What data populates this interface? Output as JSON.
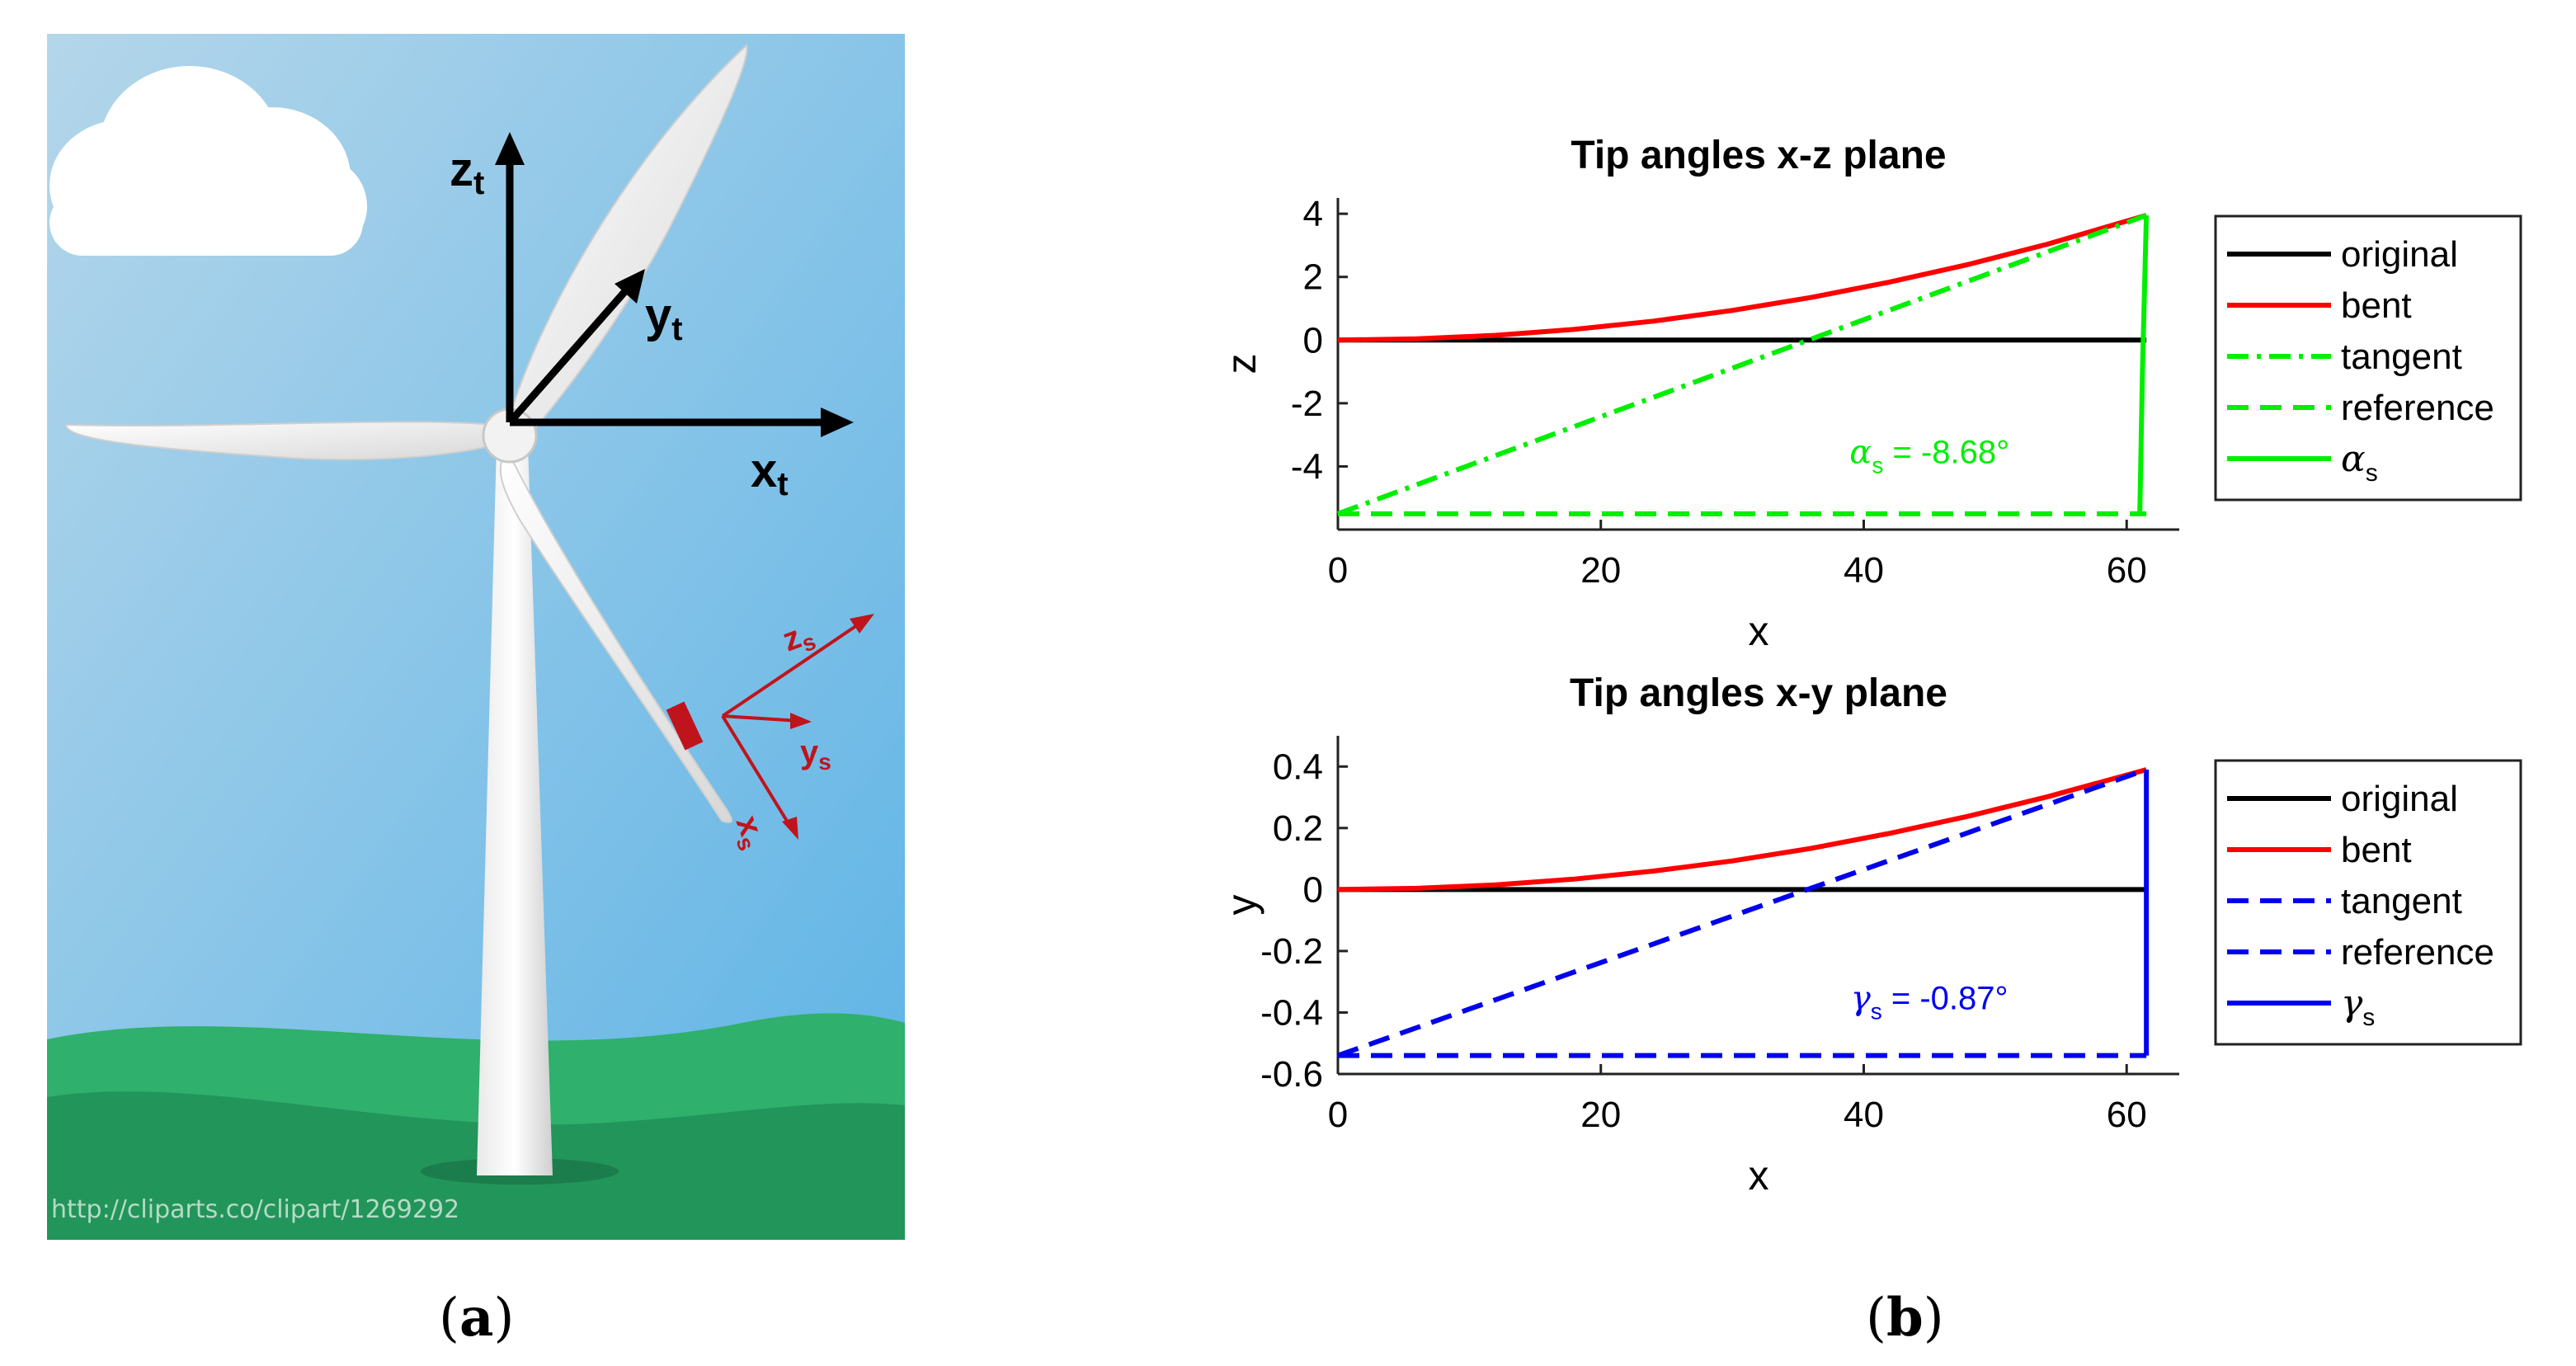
{
  "illustration": {
    "source_url": "http://cliparts.co/clipart/1269292",
    "axes_t": {
      "z": "z",
      "z_sub": "t",
      "y": "y",
      "y_sub": "t",
      "x": "x",
      "x_sub": "t"
    },
    "axes_s": {
      "z": "z",
      "z_sub": "s",
      "y": "y",
      "y_sub": "s",
      "x": "x",
      "x_sub": "s"
    },
    "colors": {
      "sky_top": "#a9d0e8",
      "sky_bottom": "#5fb4e5",
      "grass": "#2eae6a",
      "grass_dark": "#1f8f55",
      "axis_t": "#000000",
      "axis_s": "#c0141c"
    }
  },
  "captions": {
    "a": "a",
    "b": "b"
  },
  "chart_data": [
    {
      "type": "line",
      "title": "Tip angles x-z plane",
      "xlabel": "x",
      "ylabel": "z",
      "xlim": [
        0,
        64
      ],
      "ylim": [
        -6,
        4.5
      ],
      "xticks": [
        0,
        20,
        40,
        60
      ],
      "yticks": [
        4,
        2,
        0,
        -2,
        -4
      ],
      "xtick_labels": [
        "0",
        "20",
        "40",
        "60"
      ],
      "ytick_labels": [
        "4",
        "2",
        "0",
        "-2",
        "-4"
      ],
      "legend_position": "outside-right",
      "annotation": {
        "symbol": "α",
        "sub": "s",
        "text": " = -8.68°",
        "x": 45,
        "y": -3.9,
        "color": "#00ee00"
      },
      "series": [
        {
          "name": "original",
          "style": "solid",
          "color": "#000000",
          "x": [
            0,
            61.5
          ],
          "y": [
            0,
            0
          ]
        },
        {
          "name": "bent",
          "style": "solid",
          "color": "#ff0000",
          "x": [
            0,
            6,
            12,
            18,
            24,
            30,
            36,
            42,
            48,
            54,
            61.5
          ],
          "y": [
            0,
            0.04,
            0.15,
            0.34,
            0.6,
            0.94,
            1.35,
            1.84,
            2.4,
            3.04,
            3.95
          ]
        },
        {
          "name": "tangent",
          "style": "dashdot",
          "color": "#00ee00",
          "x": [
            0,
            61.5
          ],
          "y": [
            -5.5,
            3.95
          ]
        },
        {
          "name": "reference",
          "style": "dashed",
          "color": "#00ee00",
          "x": [
            0,
            61.5
          ],
          "y": [
            -5.5,
            -5.5
          ]
        },
        {
          "name": "α",
          "name_sub": "s",
          "style": "solid",
          "color": "#00ee00",
          "x": [
            61.5,
            61.2,
            61.0
          ],
          "y": [
            3.95,
            -1.0,
            -5.5
          ]
        }
      ]
    },
    {
      "type": "line",
      "title": "Tip angles x-y plane",
      "xlabel": "x",
      "ylabel": "y",
      "xlim": [
        0,
        64
      ],
      "ylim": [
        -0.6,
        0.5
      ],
      "xticks": [
        0,
        20,
        40,
        60
      ],
      "yticks": [
        0.4,
        0.2,
        0,
        -0.2,
        -0.4,
        -0.6
      ],
      "xtick_labels": [
        "0",
        "20",
        "40",
        "60"
      ],
      "ytick_labels": [
        "0.4",
        "0.2",
        "0",
        "-0.2",
        "-0.4",
        "-0.6"
      ],
      "legend_position": "outside-right",
      "annotation": {
        "symbol": "γ",
        "sub": "s",
        "text": " = -0.87°",
        "x": 45,
        "y": -0.39,
        "color": "#0000ee"
      },
      "series": [
        {
          "name": "original",
          "style": "solid",
          "color": "#000000",
          "x": [
            0,
            61.5
          ],
          "y": [
            0,
            0
          ]
        },
        {
          "name": "bent",
          "style": "solid",
          "color": "#ff0000",
          "x": [
            0,
            6,
            12,
            18,
            24,
            30,
            36,
            42,
            48,
            54,
            61.5
          ],
          "y": [
            0,
            0.004,
            0.015,
            0.034,
            0.06,
            0.093,
            0.134,
            0.183,
            0.239,
            0.302,
            0.39
          ]
        },
        {
          "name": "tangent",
          "style": "dashed",
          "color": "#0000ee",
          "x": [
            0,
            61.5
          ],
          "y": [
            -0.54,
            0.39
          ]
        },
        {
          "name": "reference",
          "style": "dashed",
          "color": "#0000ee",
          "x": [
            0,
            61.5
          ],
          "y": [
            -0.54,
            -0.54
          ]
        },
        {
          "name": "γ",
          "name_sub": "s",
          "style": "solid",
          "color": "#0000ee",
          "x": [
            61.5,
            61.5
          ],
          "y": [
            0.39,
            -0.54
          ]
        }
      ]
    }
  ]
}
